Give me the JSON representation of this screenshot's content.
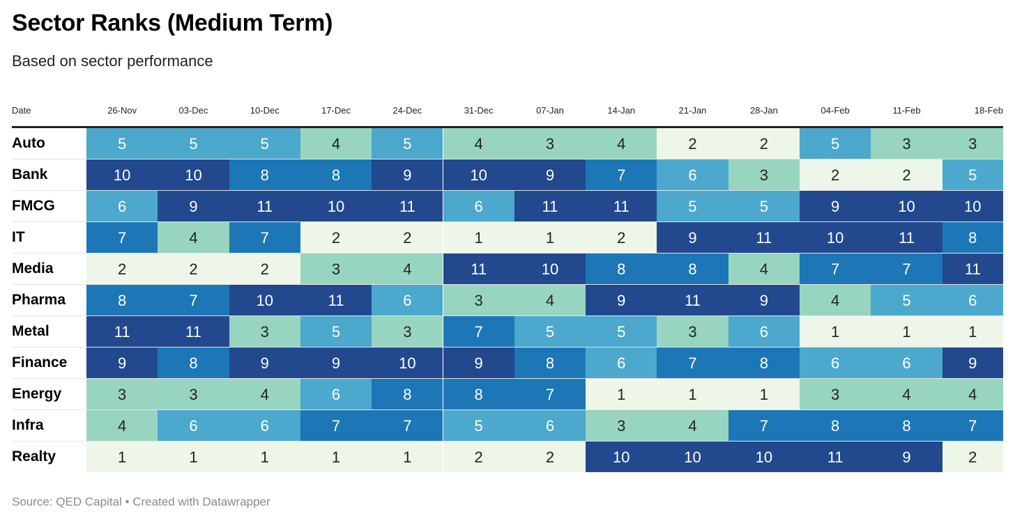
{
  "title": "Sector Ranks (Medium Term)",
  "subtitle": "Based on sector performance",
  "footer": "Source: QED Capital • Created with Datawrapper",
  "chart_data": {
    "type": "heatmap",
    "row_header": "Date",
    "columns": [
      "26-Nov",
      "03-Dec",
      "10-Dec",
      "17-Dec",
      "24-Dec",
      "31-Dec",
      "07-Jan",
      "14-Jan",
      "21-Jan",
      "28-Jan",
      "04-Feb",
      "11-Feb",
      "18-Feb"
    ],
    "rows": [
      "Auto",
      "Bank",
      "FMCG",
      "IT",
      "Media",
      "Pharma",
      "Metal",
      "Finance",
      "Energy",
      "Infra",
      "Realty"
    ],
    "values": [
      [
        5,
        5,
        5,
        4,
        5,
        4,
        3,
        4,
        2,
        2,
        5,
        3,
        3
      ],
      [
        10,
        10,
        8,
        8,
        9,
        10,
        9,
        7,
        6,
        3,
        2,
        2,
        5
      ],
      [
        6,
        9,
        11,
        10,
        11,
        6,
        11,
        11,
        5,
        5,
        9,
        10,
        10
      ],
      [
        7,
        4,
        7,
        2,
        2,
        1,
        1,
        2,
        9,
        11,
        10,
        11,
        8
      ],
      [
        2,
        2,
        2,
        3,
        4,
        11,
        10,
        8,
        8,
        4,
        7,
        7,
        11
      ],
      [
        8,
        7,
        10,
        11,
        6,
        3,
        4,
        9,
        11,
        9,
        4,
        5,
        6
      ],
      [
        11,
        11,
        3,
        5,
        3,
        7,
        5,
        5,
        3,
        6,
        1,
        1,
        1
      ],
      [
        9,
        8,
        9,
        9,
        10,
        9,
        8,
        6,
        7,
        8,
        6,
        6,
        9
      ],
      [
        3,
        3,
        4,
        6,
        8,
        8,
        7,
        1,
        1,
        1,
        3,
        4,
        4
      ],
      [
        4,
        6,
        6,
        7,
        7,
        5,
        6,
        3,
        4,
        7,
        8,
        8,
        7
      ],
      [
        1,
        1,
        1,
        1,
        1,
        2,
        2,
        10,
        10,
        10,
        11,
        9,
        2
      ]
    ],
    "color_scale": {
      "1": "#eef6e9",
      "2": "#eef6e9",
      "3": "#97d5c0",
      "4": "#97d5c0",
      "5": "#4ca8cc",
      "6": "#4ca8cc",
      "7": "#1d77b6",
      "8": "#1d77b6",
      "9": "#22488e",
      "10": "#22488e",
      "11": "#22488e"
    },
    "text_colors": {
      "light": "#ffffff",
      "dark": "#222222"
    }
  }
}
